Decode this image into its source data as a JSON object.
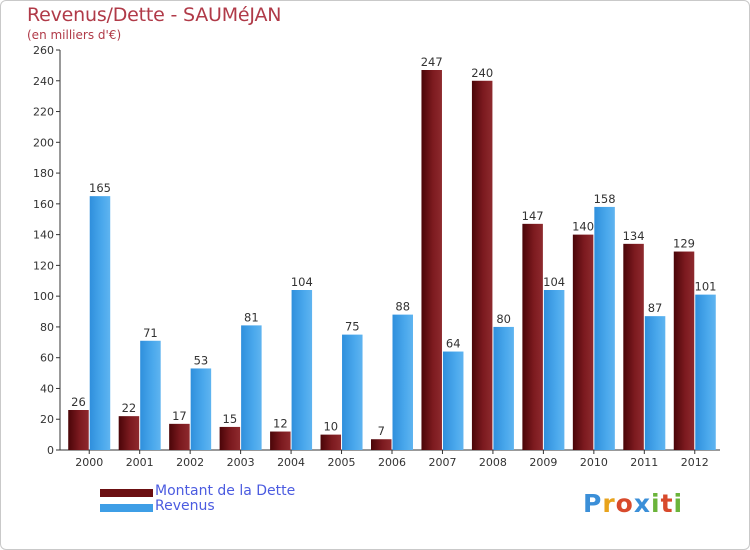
{
  "header": {
    "title": "Revenus/Dette - SAUMéJAN",
    "subtitle": "(en milliers d'€)"
  },
  "legend": {
    "items": [
      {
        "label": "Montant de la Dette",
        "color": "#6b0f12"
      },
      {
        "label": "Revenus",
        "color": "#3e9ee6"
      }
    ]
  },
  "logo": {
    "text": "Proxiti",
    "colors": [
      "#3b8fd8",
      "#e8a31c",
      "#d84a2c",
      "#3b8fd8",
      "#6bb43a",
      "#d84a2c",
      "#6bb43a"
    ]
  },
  "chart_data": {
    "type": "bar",
    "categories": [
      "2000",
      "2001",
      "2002",
      "2003",
      "2004",
      "2005",
      "2006",
      "2007",
      "2008",
      "2009",
      "2010",
      "2011",
      "2012"
    ],
    "series": [
      {
        "name": "Montant de la Dette",
        "color": "#6b0f12",
        "values": [
          26,
          22,
          17,
          15,
          12,
          10,
          7,
          247,
          240,
          147,
          140,
          134,
          129
        ]
      },
      {
        "name": "Revenus",
        "color": "#3e9ee6",
        "values": [
          165,
          71,
          53,
          81,
          104,
          75,
          88,
          64,
          80,
          104,
          158,
          87,
          101
        ]
      }
    ],
    "ylim": [
      0,
      260
    ],
    "yticks": [
      0,
      20,
      40,
      60,
      80,
      100,
      120,
      140,
      160,
      180,
      200,
      220,
      240,
      260
    ],
    "grid": false,
    "legend_position": "bottom-left"
  }
}
